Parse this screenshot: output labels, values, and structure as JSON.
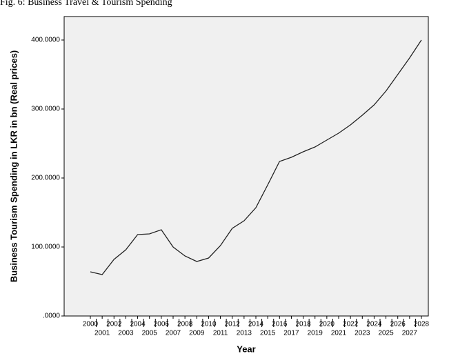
{
  "chart_data": {
    "type": "line",
    "title": "Fig. 6:  Business Travel & Tourism Spending",
    "x_label": "Year",
    "y_label": "Business Tourism Spending in LKR in bn (Real prices)",
    "categories": [
      "2000",
      "2001",
      "2002",
      "2003",
      "2004",
      "2005",
      "2006",
      "2007",
      "2008",
      "2009",
      "2010",
      "2011",
      "2012",
      "2013",
      "2014",
      "2015",
      "2016",
      "2017",
      "2018",
      "2019",
      "2020",
      "2021",
      "2022",
      "2023",
      "2024",
      "2025",
      "2026",
      "2027",
      "2028"
    ],
    "values": [
      64,
      60,
      82,
      96,
      118,
      119,
      125,
      100,
      87,
      79,
      84,
      102,
      127,
      138,
      157,
      190,
      224,
      230,
      238,
      245,
      255,
      265,
      277,
      291,
      306,
      326,
      350,
      374,
      400
    ],
    "color": "#222222",
    "ylim": [
      0,
      434
    ],
    "yticks": [
      {
        "value": 0,
        "label": ".0000"
      },
      {
        "value": 100,
        "label": "100.0000"
      },
      {
        "value": 200,
        "label": "200.0000"
      },
      {
        "value": 300,
        "label": "300.0000"
      },
      {
        "value": 400,
        "label": "400.0000"
      }
    ],
    "grid": false
  }
}
